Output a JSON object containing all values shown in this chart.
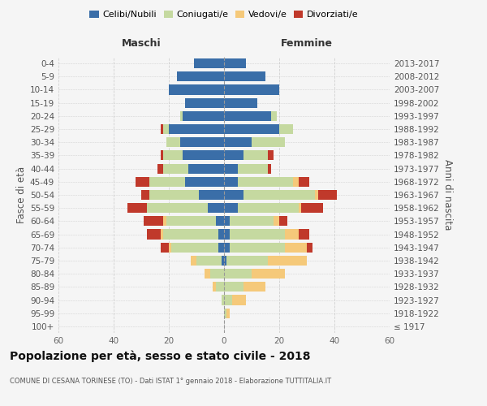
{
  "age_groups": [
    "100+",
    "95-99",
    "90-94",
    "85-89",
    "80-84",
    "75-79",
    "70-74",
    "65-69",
    "60-64",
    "55-59",
    "50-54",
    "45-49",
    "40-44",
    "35-39",
    "30-34",
    "25-29",
    "20-24",
    "15-19",
    "10-14",
    "5-9",
    "0-4"
  ],
  "birth_years": [
    "≤ 1917",
    "1918-1922",
    "1923-1927",
    "1928-1932",
    "1933-1937",
    "1938-1942",
    "1943-1947",
    "1948-1952",
    "1953-1957",
    "1958-1962",
    "1963-1967",
    "1968-1972",
    "1973-1977",
    "1978-1982",
    "1983-1987",
    "1988-1992",
    "1993-1997",
    "1998-2002",
    "2003-2007",
    "2008-2012",
    "2013-2017"
  ],
  "colors": {
    "celibi": "#3a6ea8",
    "coniugati": "#c5d9a0",
    "vedovi": "#f5c97a",
    "divorziati": "#c0392b"
  },
  "maschi": {
    "celibi": [
      0,
      0,
      0,
      0,
      0,
      1,
      2,
      2,
      3,
      6,
      9,
      14,
      13,
      15,
      16,
      20,
      15,
      14,
      20,
      17,
      11
    ],
    "coniugati": [
      0,
      0,
      1,
      3,
      5,
      9,
      17,
      20,
      18,
      22,
      18,
      13,
      9,
      7,
      5,
      2,
      1,
      0,
      0,
      0,
      0
    ],
    "vedovi": [
      0,
      0,
      0,
      1,
      2,
      2,
      1,
      1,
      1,
      0,
      0,
      0,
      0,
      0,
      0,
      0,
      0,
      0,
      0,
      0,
      0
    ],
    "divorziati": [
      0,
      0,
      0,
      0,
      0,
      0,
      3,
      5,
      7,
      7,
      3,
      5,
      2,
      1,
      0,
      1,
      0,
      0,
      0,
      0,
      0
    ]
  },
  "femmine": {
    "celibi": [
      0,
      0,
      0,
      0,
      0,
      1,
      2,
      2,
      2,
      5,
      7,
      5,
      5,
      7,
      10,
      20,
      17,
      12,
      20,
      15,
      8
    ],
    "coniugati": [
      0,
      1,
      3,
      7,
      10,
      15,
      20,
      20,
      16,
      22,
      26,
      20,
      11,
      9,
      12,
      5,
      2,
      0,
      0,
      0,
      0
    ],
    "vedovi": [
      0,
      1,
      5,
      8,
      12,
      14,
      8,
      5,
      2,
      1,
      1,
      2,
      0,
      0,
      0,
      0,
      0,
      0,
      0,
      0,
      0
    ],
    "divorziati": [
      0,
      0,
      0,
      0,
      0,
      0,
      2,
      4,
      3,
      8,
      7,
      4,
      1,
      2,
      0,
      0,
      0,
      0,
      0,
      0,
      0
    ]
  },
  "xlim": 60,
  "title": "Popolazione per età, sesso e stato civile - 2018",
  "subtitle": "COMUNE DI CESANA TORINESE (TO) - Dati ISTAT 1° gennaio 2018 - Elaborazione TUTTITALIA.IT",
  "ylabel_left": "Fasce di età",
  "ylabel_right": "Anni di nascita",
  "header_left": "Maschi",
  "header_right": "Femmine",
  "bg_color": "#f5f5f5",
  "grid_color": "#cccccc",
  "bar_height": 0.75,
  "legend_labels": [
    "Celibi/Nubili",
    "Coniugati/e",
    "Vedovi/e",
    "Divorziati/e"
  ]
}
